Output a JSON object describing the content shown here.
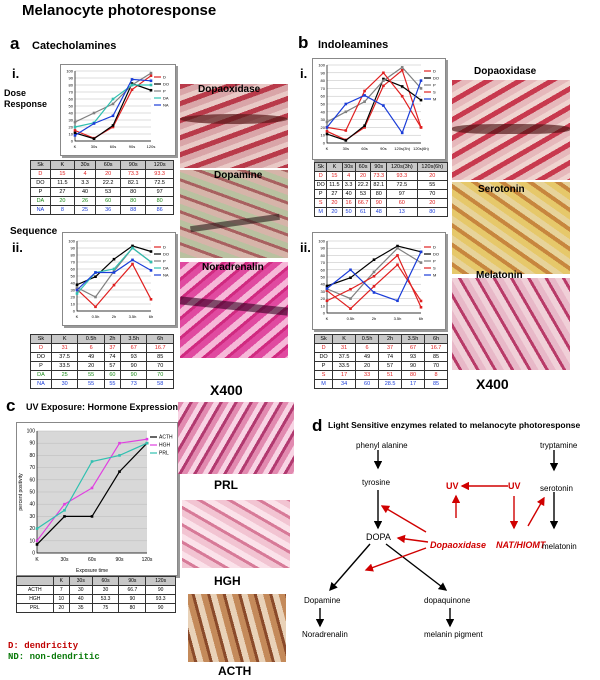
{
  "figure": {
    "title": "Melanocyte photoresponse",
    "panel_a": {
      "letter": "a",
      "heading": "Catecholamines",
      "row_i": "i.",
      "row_i_label": "Dose Response",
      "row_ii": "ii.",
      "row_ii_label": "Sequence"
    },
    "panel_b": {
      "letter": "b",
      "heading": "Indoleamines",
      "row_i": "i.",
      "row_ii": "ii."
    },
    "panel_c": {
      "letter": "c",
      "heading": "UV Exposure: Hormone Expression",
      "ylabel": "percent positivity",
      "xlabel": "Exposure time"
    },
    "panel_d": {
      "letter": "d",
      "heading": "Light Sensitive enzymes related to melanocyte photoresponse"
    },
    "micrographs": {
      "a_dopaoxidase": "Dopaoxidase",
      "a_dopamine": "Dopamine",
      "a_noradrenalin": "Noradrenalin",
      "b_dopaoxidase": "Dopaoxidase",
      "b_serotonin": "Serotonin",
      "b_melatonin": "Melatonin",
      "magnification": "X400",
      "prl": "PRL",
      "hgh": "HGH",
      "acth": "ACTH"
    },
    "notes": {
      "d": "D: dendricity",
      "nd": "ND: non-dendritic"
    },
    "pathway": {
      "phenylalanine": "phenyl alanine",
      "tyrosine": "tyrosine",
      "dopa": "DOPA",
      "dopaoxidase": "Dopaoxidase",
      "uv_left": "UV",
      "uv_right": "UV",
      "tryptamine": "tryptamine",
      "serotonin": "serotonin",
      "nat": "NAT/HIOMT",
      "melatonin": "melatonin",
      "dopamine": "Dopamine",
      "dopaquinone": "dopaquinone",
      "noradrenalin": "Noradrenalin",
      "melanin": "melanin pigment"
    },
    "colors": {
      "red": "#e02020",
      "black": "#000000",
      "teal": "#30c0b0",
      "blue": "#1a3cd8",
      "green": "#1a8a1a",
      "magenta": "#e040e0",
      "purple": "#6040a0",
      "gray": "#808080",
      "pathway_red": "#d00000"
    }
  },
  "chart_data": [
    {
      "id": "a_i",
      "type": "line",
      "categories": [
        "K",
        "30s",
        "60s",
        "90s",
        "120s"
      ],
      "ylim": [
        0,
        100
      ],
      "yticks": [
        "0",
        "10",
        "20",
        "30",
        "40",
        "50",
        "60",
        "70",
        "80",
        "90",
        "100"
      ],
      "legend": [
        "D",
        "DO",
        "P",
        "DA",
        "NA"
      ],
      "series": [
        {
          "name": "D",
          "color": "#e02020",
          "values": [
            15,
            4,
            20,
            73.3,
            93.3
          ]
        },
        {
          "name": "DO",
          "color": "#000000",
          "values": [
            11.5,
            3.3,
            22.2,
            82.1,
            72.5
          ]
        },
        {
          "name": "P",
          "color": "#808080",
          "values": [
            27,
            40,
            53,
            80,
            97
          ]
        },
        {
          "name": "DA",
          "color": "#30c0b0",
          "values": [
            20,
            26,
            60,
            80,
            80
          ]
        },
        {
          "name": "NA",
          "color": "#1a3cd8",
          "values": [
            8,
            25,
            36,
            88,
            86
          ]
        }
      ],
      "table": {
        "header": [
          "Sk",
          "K",
          "30s",
          "60s",
          "90s",
          "120s"
        ],
        "rows": [
          [
            "D",
            "15",
            "4",
            "20",
            "73.3",
            "93.3"
          ],
          [
            "DO",
            "11.5",
            "3.3",
            "22.2",
            "82.1",
            "72.5"
          ],
          [
            "P",
            "27",
            "40",
            "53",
            "80",
            "97"
          ],
          [
            "DA",
            "20",
            "26",
            "60",
            "80",
            "80"
          ],
          [
            "NA",
            "8",
            "25",
            "36",
            "88",
            "86"
          ]
        ]
      }
    },
    {
      "id": "a_ii",
      "type": "line",
      "categories": [
        "K",
        "0.5h",
        "2h",
        "3.5h",
        "6h"
      ],
      "ylim": [
        0,
        100
      ],
      "yticks": [
        "0",
        "10",
        "20",
        "30",
        "40",
        "50",
        "60",
        "70",
        "80",
        "90",
        "100"
      ],
      "legend": [
        "D",
        "DO",
        "P",
        "DA",
        "NA"
      ],
      "series": [
        {
          "name": "D",
          "color": "#e02020",
          "values": [
            31,
            6,
            37,
            67,
            16.7
          ]
        },
        {
          "name": "DO",
          "color": "#000000",
          "values": [
            37.5,
            49,
            74,
            93,
            85
          ]
        },
        {
          "name": "P",
          "color": "#808080",
          "values": [
            33.5,
            20,
            57,
            90,
            70
          ]
        },
        {
          "name": "DA",
          "color": "#30c0b0",
          "values": [
            25,
            55,
            60,
            90,
            70
          ]
        },
        {
          "name": "NA",
          "color": "#1a3cd8",
          "values": [
            30,
            55,
            55,
            73,
            58
          ]
        }
      ],
      "table": {
        "header": [
          "Sk",
          "K",
          "0.5h",
          "2h",
          "3.5h",
          "6h"
        ],
        "rows": [
          [
            "D",
            "31",
            "6",
            "37",
            "67",
            "16.7"
          ],
          [
            "DO",
            "37.5",
            "49",
            "74",
            "93",
            "85"
          ],
          [
            "P",
            "33.5",
            "20",
            "57",
            "90",
            "70"
          ],
          [
            "DA",
            "25",
            "55",
            "60",
            "90",
            "70"
          ],
          [
            "NA",
            "30",
            "55",
            "55",
            "73",
            "58"
          ]
        ]
      }
    },
    {
      "id": "b_i",
      "type": "line",
      "categories": [
        "K",
        "30s",
        "60s",
        "90s",
        "120s(3h)",
        "120s(6h)"
      ],
      "ylim": [
        0,
        100
      ],
      "yticks": [
        "0",
        "10",
        "20",
        "30",
        "40",
        "50",
        "60",
        "70",
        "80",
        "90",
        "100"
      ],
      "legend": [
        "D",
        "DO",
        "P",
        "S",
        "M"
      ],
      "series": [
        {
          "name": "D",
          "color": "#e02020",
          "values": [
            15,
            4,
            20,
            73.3,
            93.3,
            20
          ]
        },
        {
          "name": "DO",
          "color": "#000000",
          "values": [
            11.5,
            3.3,
            22.2,
            82.1,
            72.5,
            55
          ]
        },
        {
          "name": "P",
          "color": "#808080",
          "values": [
            27,
            40,
            53,
            80,
            97,
            70
          ]
        },
        {
          "name": "S",
          "color": "#e02020",
          "values": [
            20,
            16,
            66.7,
            90,
            60,
            20
          ]
        },
        {
          "name": "M",
          "color": "#1a3cd8",
          "values": [
            20,
            50,
            61,
            48,
            13,
            80
          ]
        }
      ],
      "table": {
        "header": [
          "Sk",
          "K",
          "30s",
          "60s",
          "90s",
          "120s(3h)",
          "120s(6h)"
        ],
        "rows": [
          [
            "D",
            "15",
            "4",
            "20",
            "73.3",
            "93.3",
            "20"
          ],
          [
            "DO",
            "11.5",
            "3.3",
            "22.2",
            "82.1",
            "72.5",
            "55"
          ],
          [
            "P",
            "27",
            "40",
            "53",
            "80",
            "97",
            "70"
          ],
          [
            "S",
            "20",
            "16",
            "66.7",
            "90",
            "60",
            "20"
          ],
          [
            "M",
            "20",
            "50",
            "61",
            "48",
            "13",
            "80"
          ]
        ]
      }
    },
    {
      "id": "b_ii",
      "type": "line",
      "categories": [
        "K",
        "0.5h",
        "2h",
        "3.5h",
        "6h"
      ],
      "ylim": [
        0,
        100
      ],
      "yticks": [
        "0",
        "10",
        "20",
        "30",
        "40",
        "50",
        "60",
        "70",
        "80",
        "90",
        "100"
      ],
      "legend": [
        "D",
        "DO",
        "P",
        "S",
        "M"
      ],
      "series": [
        {
          "name": "D",
          "color": "#e02020",
          "values": [
            31,
            6,
            37,
            67,
            16.7
          ]
        },
        {
          "name": "DO",
          "color": "#000000",
          "values": [
            37.5,
            49,
            74,
            93,
            85
          ]
        },
        {
          "name": "P",
          "color": "#808080",
          "values": [
            33.5,
            20,
            57,
            90,
            70
          ]
        },
        {
          "name": "S",
          "color": "#e02020",
          "values": [
            17,
            33,
            51,
            80,
            8
          ]
        },
        {
          "name": "M",
          "color": "#1a3cd8",
          "values": [
            34,
            60,
            28.5,
            17,
            85
          ]
        }
      ],
      "table": {
        "header": [
          "Sk",
          "K",
          "0.5h",
          "2h",
          "3.5h",
          "6h"
        ],
        "rows": [
          [
            "D",
            "31",
            "6",
            "37",
            "67",
            "16.7"
          ],
          [
            "DO",
            "37.5",
            "49",
            "74",
            "93",
            "85"
          ],
          [
            "P",
            "33.5",
            "20",
            "57",
            "90",
            "70"
          ],
          [
            "S",
            "17",
            "33",
            "51",
            "80",
            "8"
          ],
          [
            "M",
            "34",
            "60",
            "28.5",
            "17",
            "85"
          ]
        ]
      }
    },
    {
      "id": "c",
      "type": "line",
      "title": "UV Exposure: Hormone Expression",
      "xlabel": "Exposure time",
      "ylabel": "percent positivity",
      "categories": [
        "K",
        "30s",
        "60s",
        "90s",
        "120s"
      ],
      "ylim": [
        0,
        100
      ],
      "yticks": [
        "0",
        "10",
        "20",
        "30",
        "40",
        "50",
        "60",
        "70",
        "80",
        "90",
        "100"
      ],
      "legend": [
        "ACTH",
        "HGH",
        "PRL"
      ],
      "series": [
        {
          "name": "ACTH",
          "color": "#000000",
          "values": [
            7,
            30,
            30,
            66.7,
            90
          ]
        },
        {
          "name": "HGH",
          "color": "#e040e0",
          "values": [
            10,
            40,
            53.3,
            90,
            93.3
          ]
        },
        {
          "name": "PRL",
          "color": "#30c0b0",
          "values": [
            20,
            35,
            75,
            80,
            90
          ]
        }
      ],
      "table": {
        "header": [
          "",
          "K",
          "30s",
          "60s",
          "90s",
          "120s"
        ],
        "rows": [
          [
            "ACTH",
            "7",
            "30",
            "30",
            "66.7",
            "90"
          ],
          [
            "HGH",
            "10",
            "40",
            "53.3",
            "90",
            "93.3"
          ],
          [
            "PRL",
            "20",
            "35",
            "75",
            "80",
            "90"
          ]
        ]
      }
    }
  ]
}
